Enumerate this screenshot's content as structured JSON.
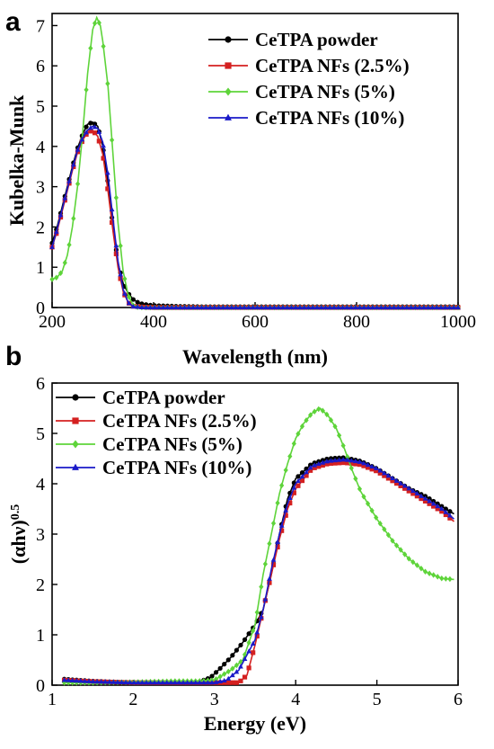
{
  "chart_data": [
    {
      "panel": "a",
      "type": "line",
      "xlabel": "Wavelength (nm)",
      "ylabel": "Kubelka-Munk",
      "xlim": [
        200,
        1000
      ],
      "ylim": [
        0,
        7.3
      ],
      "xticks": [
        200,
        400,
        600,
        800,
        1000
      ],
      "yticks": [
        0,
        1,
        2,
        3,
        4,
        5,
        6,
        7
      ],
      "grid": false,
      "legend_position": "top-right",
      "series": [
        {
          "name": "CeTPA powder",
          "color": "#000000",
          "marker": "circle",
          "points": [
            [
              200,
              1.6
            ],
            [
              210,
              2.0
            ],
            [
              220,
              2.5
            ],
            [
              230,
              3.0
            ],
            [
              240,
              3.5
            ],
            [
              250,
              3.95
            ],
            [
              260,
              4.3
            ],
            [
              270,
              4.55
            ],
            [
              280,
              4.6
            ],
            [
              290,
              4.5
            ],
            [
              300,
              4.0
            ],
            [
              310,
              3.1
            ],
            [
              320,
              2.0
            ],
            [
              330,
              1.1
            ],
            [
              340,
              0.6
            ],
            [
              350,
              0.35
            ],
            [
              360,
              0.2
            ],
            [
              370,
              0.12
            ],
            [
              380,
              0.08
            ],
            [
              400,
              0.05
            ],
            [
              450,
              0.03
            ],
            [
              500,
              0.02
            ],
            [
              600,
              0.02
            ],
            [
              700,
              0.02
            ],
            [
              800,
              0.02
            ],
            [
              900,
              0.02
            ],
            [
              1000,
              0.02
            ]
          ]
        },
        {
          "name": "CeTPA NFs (2.5%)",
          "color": "#d42020",
          "marker": "square",
          "points": [
            [
              200,
              1.5
            ],
            [
              210,
              1.9
            ],
            [
              220,
              2.4
            ],
            [
              230,
              2.9
            ],
            [
              240,
              3.4
            ],
            [
              250,
              3.85
            ],
            [
              260,
              4.15
            ],
            [
              270,
              4.35
            ],
            [
              280,
              4.4
            ],
            [
              290,
              4.25
            ],
            [
              300,
              3.8
            ],
            [
              310,
              2.9
            ],
            [
              320,
              1.9
            ],
            [
              330,
              1.0
            ],
            [
              340,
              0.4
            ],
            [
              350,
              0.12
            ],
            [
              360,
              0.03
            ],
            [
              380,
              0.01
            ],
            [
              400,
              0.0
            ],
            [
              500,
              0.0
            ],
            [
              600,
              0.0
            ],
            [
              700,
              0.0
            ],
            [
              800,
              0.0
            ],
            [
              900,
              0.0
            ],
            [
              1000,
              0.0
            ]
          ]
        },
        {
          "name": "CeTPA NFs (5%)",
          "color": "#5ed43a",
          "marker": "diamond",
          "points": [
            [
              200,
              0.7
            ],
            [
              210,
              0.75
            ],
            [
              220,
              0.9
            ],
            [
              230,
              1.3
            ],
            [
              240,
              2.0
            ],
            [
              250,
              3.0
            ],
            [
              260,
              4.3
            ],
            [
              270,
              5.8
            ],
            [
              280,
              6.9
            ],
            [
              288,
              7.2
            ],
            [
              295,
              7.0
            ],
            [
              300,
              6.6
            ],
            [
              310,
              5.5
            ],
            [
              320,
              3.8
            ],
            [
              330,
              2.1
            ],
            [
              340,
              0.9
            ],
            [
              350,
              0.3
            ],
            [
              360,
              0.05
            ],
            [
              370,
              0.0
            ],
            [
              400,
              0.0
            ],
            [
              500,
              0.0
            ],
            [
              600,
              0.0
            ],
            [
              700,
              0.0
            ],
            [
              800,
              0.0
            ],
            [
              900,
              0.0
            ],
            [
              1000,
              0.0
            ]
          ]
        },
        {
          "name": "CeTPA NFs (10%)",
          "color": "#1a1ac8",
          "marker": "triangle",
          "points": [
            [
              200,
              1.5
            ],
            [
              210,
              1.95
            ],
            [
              220,
              2.45
            ],
            [
              230,
              2.95
            ],
            [
              240,
              3.45
            ],
            [
              250,
              3.9
            ],
            [
              260,
              4.2
            ],
            [
              270,
              4.4
            ],
            [
              280,
              4.5
            ],
            [
              290,
              4.45
            ],
            [
              300,
              4.1
            ],
            [
              310,
              3.3
            ],
            [
              320,
              2.2
            ],
            [
              330,
              1.15
            ],
            [
              340,
              0.45
            ],
            [
              350,
              0.12
            ],
            [
              360,
              0.02
            ],
            [
              380,
              0.0
            ],
            [
              400,
              0.0
            ],
            [
              500,
              0.0
            ],
            [
              600,
              0.0
            ],
            [
              700,
              0.0
            ],
            [
              800,
              0.0
            ],
            [
              900,
              0.0
            ],
            [
              1000,
              0.0
            ]
          ]
        }
      ]
    },
    {
      "panel": "b",
      "type": "line",
      "xlabel": "Energy (eV)",
      "ylabel": "(αhν)",
      "ylabel_sup": "0.5",
      "xlim": [
        1,
        6
      ],
      "ylim": [
        0,
        6
      ],
      "xticks": [
        1,
        2,
        3,
        4,
        5,
        6
      ],
      "yticks": [
        0,
        1,
        2,
        3,
        4,
        5,
        6
      ],
      "grid": false,
      "legend_position": "top-left",
      "series": [
        {
          "name": "CeTPA powder",
          "color": "#000000",
          "marker": "circle",
          "points": [
            [
              1.15,
              0.12
            ],
            [
              1.5,
              0.08
            ],
            [
              2.0,
              0.05
            ],
            [
              2.5,
              0.05
            ],
            [
              2.8,
              0.06
            ],
            [
              2.95,
              0.15
            ],
            [
              3.05,
              0.3
            ],
            [
              3.2,
              0.55
            ],
            [
              3.35,
              0.85
            ],
            [
              3.5,
              1.2
            ],
            [
              3.6,
              1.5
            ],
            [
              3.7,
              2.2
            ],
            [
              3.8,
              3.0
            ],
            [
              3.9,
              3.7
            ],
            [
              4.0,
              4.1
            ],
            [
              4.2,
              4.4
            ],
            [
              4.4,
              4.5
            ],
            [
              4.6,
              4.52
            ],
            [
              4.8,
              4.45
            ],
            [
              5.0,
              4.3
            ],
            [
              5.2,
              4.1
            ],
            [
              5.4,
              3.9
            ],
            [
              5.6,
              3.75
            ],
            [
              5.8,
              3.55
            ],
            [
              5.95,
              3.4
            ]
          ]
        },
        {
          "name": "CeTPA NFs (2.5%)",
          "color": "#d42020",
          "marker": "square",
          "points": [
            [
              1.15,
              0.1
            ],
            [
              1.5,
              0.07
            ],
            [
              2.0,
              0.05
            ],
            [
              2.5,
              0.05
            ],
            [
              3.0,
              0.05
            ],
            [
              3.3,
              0.05
            ],
            [
              3.4,
              0.2
            ],
            [
              3.5,
              0.8
            ],
            [
              3.6,
              1.5
            ],
            [
              3.7,
              2.2
            ],
            [
              3.8,
              2.9
            ],
            [
              3.9,
              3.5
            ],
            [
              4.0,
              3.9
            ],
            [
              4.2,
              4.3
            ],
            [
              4.4,
              4.4
            ],
            [
              4.6,
              4.42
            ],
            [
              4.8,
              4.38
            ],
            [
              5.0,
              4.25
            ],
            [
              5.2,
              4.05
            ],
            [
              5.4,
              3.85
            ],
            [
              5.6,
              3.65
            ],
            [
              5.8,
              3.45
            ],
            [
              5.95,
              3.25
            ]
          ]
        },
        {
          "name": "CeTPA NFs (5%)",
          "color": "#5ed43a",
          "marker": "diamond",
          "points": [
            [
              1.15,
              0.05
            ],
            [
              1.5,
              0.05
            ],
            [
              2.0,
              0.06
            ],
            [
              2.5,
              0.08
            ],
            [
              2.8,
              0.08
            ],
            [
              3.0,
              0.1
            ],
            [
              3.2,
              0.3
            ],
            [
              3.35,
              0.5
            ],
            [
              3.5,
              1.2
            ],
            [
              3.6,
              2.2
            ],
            [
              3.7,
              3.0
            ],
            [
              3.8,
              3.8
            ],
            [
              3.9,
              4.4
            ],
            [
              4.0,
              4.9
            ],
            [
              4.1,
              5.2
            ],
            [
              4.2,
              5.4
            ],
            [
              4.3,
              5.5
            ],
            [
              4.4,
              5.35
            ],
            [
              4.5,
              5.1
            ],
            [
              4.6,
              4.7
            ],
            [
              4.7,
              4.25
            ],
            [
              4.8,
              3.85
            ],
            [
              5.0,
              3.3
            ],
            [
              5.2,
              2.85
            ],
            [
              5.4,
              2.5
            ],
            [
              5.6,
              2.25
            ],
            [
              5.8,
              2.12
            ],
            [
              5.95,
              2.1
            ]
          ]
        },
        {
          "name": "CeTPA NFs (10%)",
          "color": "#1a1ac8",
          "marker": "triangle",
          "points": [
            [
              1.15,
              0.1
            ],
            [
              1.5,
              0.07
            ],
            [
              2.0,
              0.05
            ],
            [
              2.5,
              0.05
            ],
            [
              3.0,
              0.05
            ],
            [
              3.15,
              0.1
            ],
            [
              3.3,
              0.3
            ],
            [
              3.5,
              0.9
            ],
            [
              3.6,
              1.5
            ],
            [
              3.7,
              2.3
            ],
            [
              3.8,
              3.0
            ],
            [
              3.9,
              3.6
            ],
            [
              4.0,
              4.0
            ],
            [
              4.2,
              4.35
            ],
            [
              4.4,
              4.45
            ],
            [
              4.6,
              4.48
            ],
            [
              4.8,
              4.43
            ],
            [
              5.0,
              4.3
            ],
            [
              5.2,
              4.1
            ],
            [
              5.4,
              3.9
            ],
            [
              5.6,
              3.7
            ],
            [
              5.8,
              3.5
            ],
            [
              5.95,
              3.3
            ]
          ]
        }
      ]
    }
  ]
}
